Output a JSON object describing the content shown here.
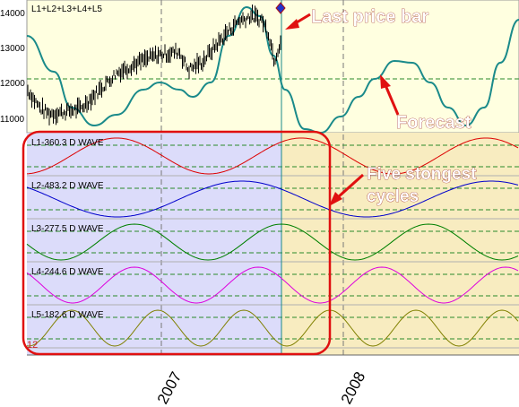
{
  "chart_data": {
    "type": "line",
    "main_panel": {
      "label": "L1+L2+L3+L4+L5",
      "y_ticks": [
        "14000",
        "13000",
        "12000",
        "11000"
      ],
      "y_tick_values": [
        14000,
        13000,
        12000,
        11000
      ],
      "ylim": [
        10600,
        14450
      ],
      "price_series_color": "#000000",
      "forecast_series_color": "#1a8a8a"
    },
    "wave_panels": [
      {
        "label": "L1-360.3 D WAVE",
        "period_days": 360.3,
        "color": "#dd0000"
      },
      {
        "label": "L2-483.2 D WAVE",
        "period_days": 483.2,
        "color": "#0000cc"
      },
      {
        "label": "L3-277.5 D WAVE",
        "period_days": 277.5,
        "color": "#008000"
      },
      {
        "label": "L4-244.6 D WAVE",
        "period_days": 244.6,
        "color": "#dd00dd"
      },
      {
        "label": "L5-182.6 D WAVE",
        "period_days": 182.6,
        "color": "#808000"
      }
    ],
    "x_axis": {
      "date_labels": [
        "2007",
        "2008"
      ]
    },
    "annotations": {
      "last_price_bar": "Last price bar",
      "forecast": "Forecast",
      "cycles_line1": "Five stongest",
      "cycles_line2": "cycles"
    },
    "corner_label": "12",
    "colors": {
      "main_background": "#ffffe0",
      "history_region": "#dcdcfa",
      "forecast_region": "#f8ecc0",
      "annotation_red": "#e01010",
      "guide_line": "#2a8a2a"
    }
  }
}
